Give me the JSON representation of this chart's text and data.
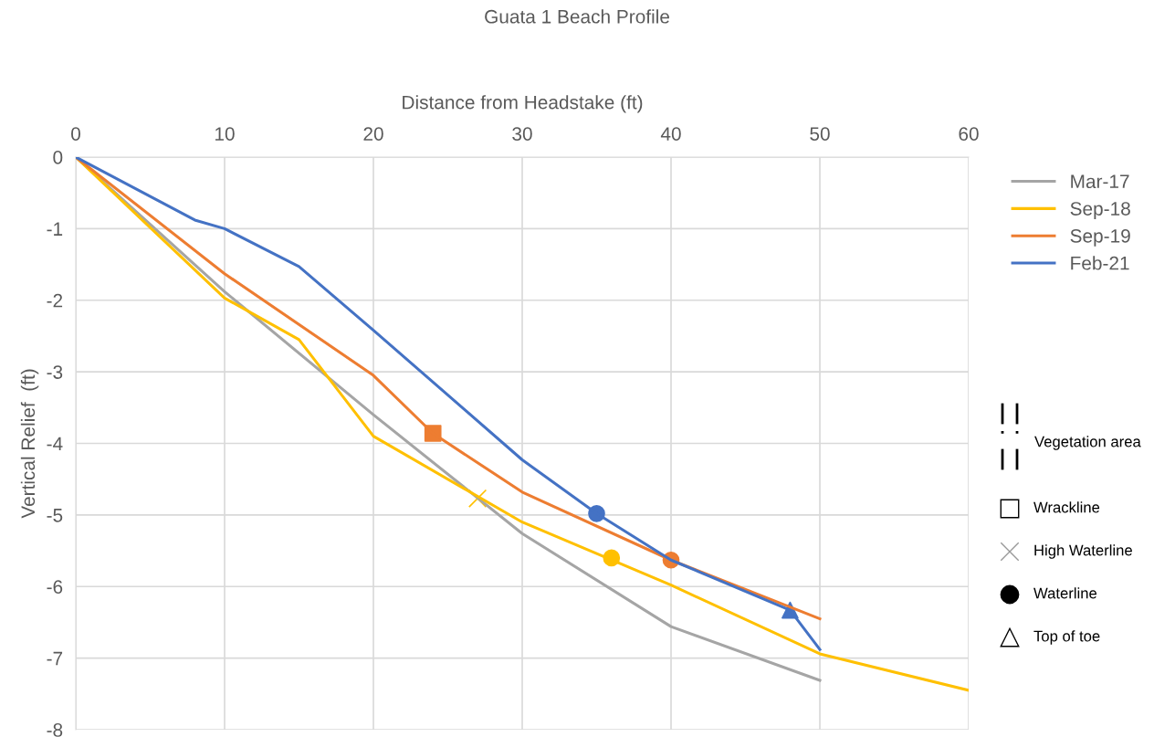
{
  "chart_data": {
    "type": "line",
    "title": "Guata 1 Beach Profile",
    "xlabel": "Distance from Headstake (ft)",
    "ylabel": "Vertical Relief  (ft)",
    "xlim": [
      0,
      60
    ],
    "xticks": [
      0,
      10,
      20,
      30,
      40,
      50,
      60
    ],
    "ylim": [
      -8,
      0
    ],
    "yticks": [
      -8,
      -7,
      -6,
      -5,
      -4,
      -3,
      -2,
      -1,
      0
    ],
    "grid": true,
    "legend": "right",
    "marker": "none",
    "series": [
      {
        "name": "Mar-17",
        "color": "#a5a5a5",
        "x": [
          0,
          10,
          20,
          30,
          40,
          50
        ],
        "values": [
          0,
          -1.88,
          -3.6,
          -5.26,
          -6.56,
          -7.31
        ]
      },
      {
        "name": "Sep-18",
        "color": "#ffc000",
        "x": [
          0,
          10,
          15,
          20,
          30,
          40,
          50,
          60
        ],
        "values": [
          0,
          -1.97,
          -2.55,
          -3.9,
          -5.1,
          -5.98,
          -6.94,
          -7.45
        ]
      },
      {
        "name": "Sep-19",
        "color": "#ed7d31",
        "x": [
          0,
          10,
          20,
          24,
          30,
          40,
          50
        ],
        "values": [
          0,
          -1.63,
          -3.05,
          -3.86,
          -4.68,
          -5.63,
          -6.45
        ]
      },
      {
        "name": "Feb-21",
        "color": "#4472c4",
        "x": [
          0,
          8,
          10,
          15,
          20,
          30,
          35,
          40,
          48,
          50
        ],
        "values": [
          0,
          -0.88,
          -1.0,
          -1.53,
          -2.42,
          -4.23,
          -4.98,
          -5.63,
          -6.33,
          -6.88
        ]
      },
      {
        "type": "scatter",
        "marker": "square",
        "color": "#ed7d31",
        "x": [
          24
        ],
        "values": [
          -3.86
        ]
      },
      {
        "type": "scatter",
        "marker": "cross",
        "color": "#ffc000",
        "x": [
          27
        ],
        "values": [
          -4.77
        ]
      },
      {
        "type": "scatter",
        "marker": "circle",
        "color": "#ffc000",
        "x": [
          36
        ],
        "values": [
          -5.6
        ]
      },
      {
        "type": "scatter",
        "marker": "circle",
        "color": "#ed7d31",
        "x": [
          40
        ],
        "values": [
          -5.63
        ]
      },
      {
        "type": "scatter",
        "marker": "circle",
        "color": "#4472c4",
        "x": [
          35
        ],
        "values": [
          -4.98
        ]
      },
      {
        "type": "scatter",
        "marker": "triangle",
        "color": "#4472c4",
        "x": [
          48
        ],
        "values": [
          -6.33
        ]
      }
    ],
    "annotations": [
      "Vegetation area",
      "Wrackline",
      "High Waterline",
      "Waterline",
      "Top of toe"
    ]
  }
}
